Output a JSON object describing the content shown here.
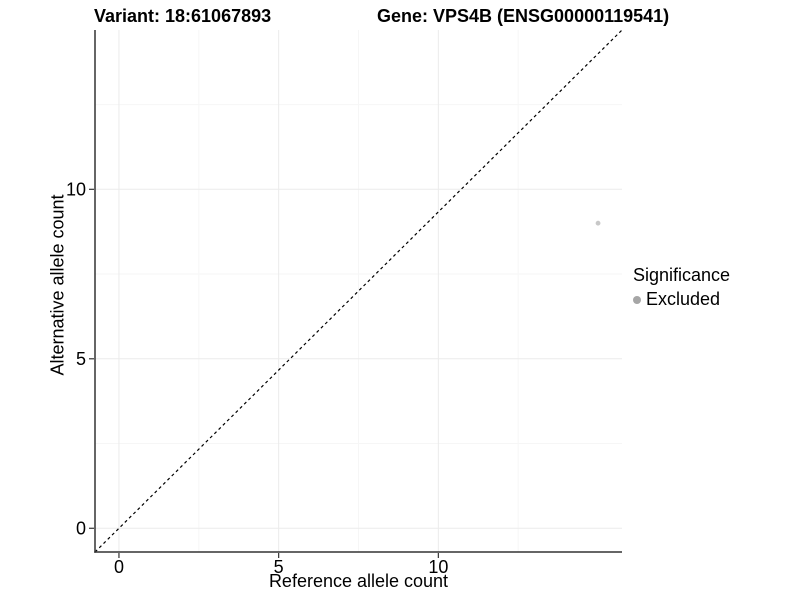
{
  "chart_data": {
    "type": "scatter",
    "titles": {
      "left": "Variant: 18:61067893",
      "right": "Gene: VPS4B (ENSG00000119541)"
    },
    "xlabel": "Reference allele count",
    "ylabel": "Alternative allele count",
    "xlim": [
      -0.75,
      15.75
    ],
    "ylim": [
      -0.7,
      14.7
    ],
    "x_ticks": [
      0,
      5,
      10
    ],
    "y_ticks": [
      0,
      5,
      10
    ],
    "x_minor_gridlines": [
      2.5,
      7.5,
      12.5
    ],
    "y_minor_gridlines": [
      2.5,
      7.5,
      12.5
    ],
    "grid": "on",
    "points": [
      {
        "x": 15,
        "y": 9,
        "significance": "Excluded"
      }
    ],
    "diagonal_line": {
      "style": "dashed",
      "extent": "panel-corner-to-corner",
      "color": "#000000"
    },
    "legend": {
      "title": "Significance",
      "position": "right",
      "items": [
        {
          "label": "Excluded",
          "color": "#a6a6a6"
        }
      ]
    },
    "colors": {
      "background": "#ffffff",
      "point": "#c8c8c8",
      "legend_key": "#a6a6a6",
      "axis": "#333333",
      "grid_major": "#ebebeb",
      "grid_minor": "#f6f6f6",
      "text": "#000000",
      "diagonal": "#000000"
    }
  }
}
